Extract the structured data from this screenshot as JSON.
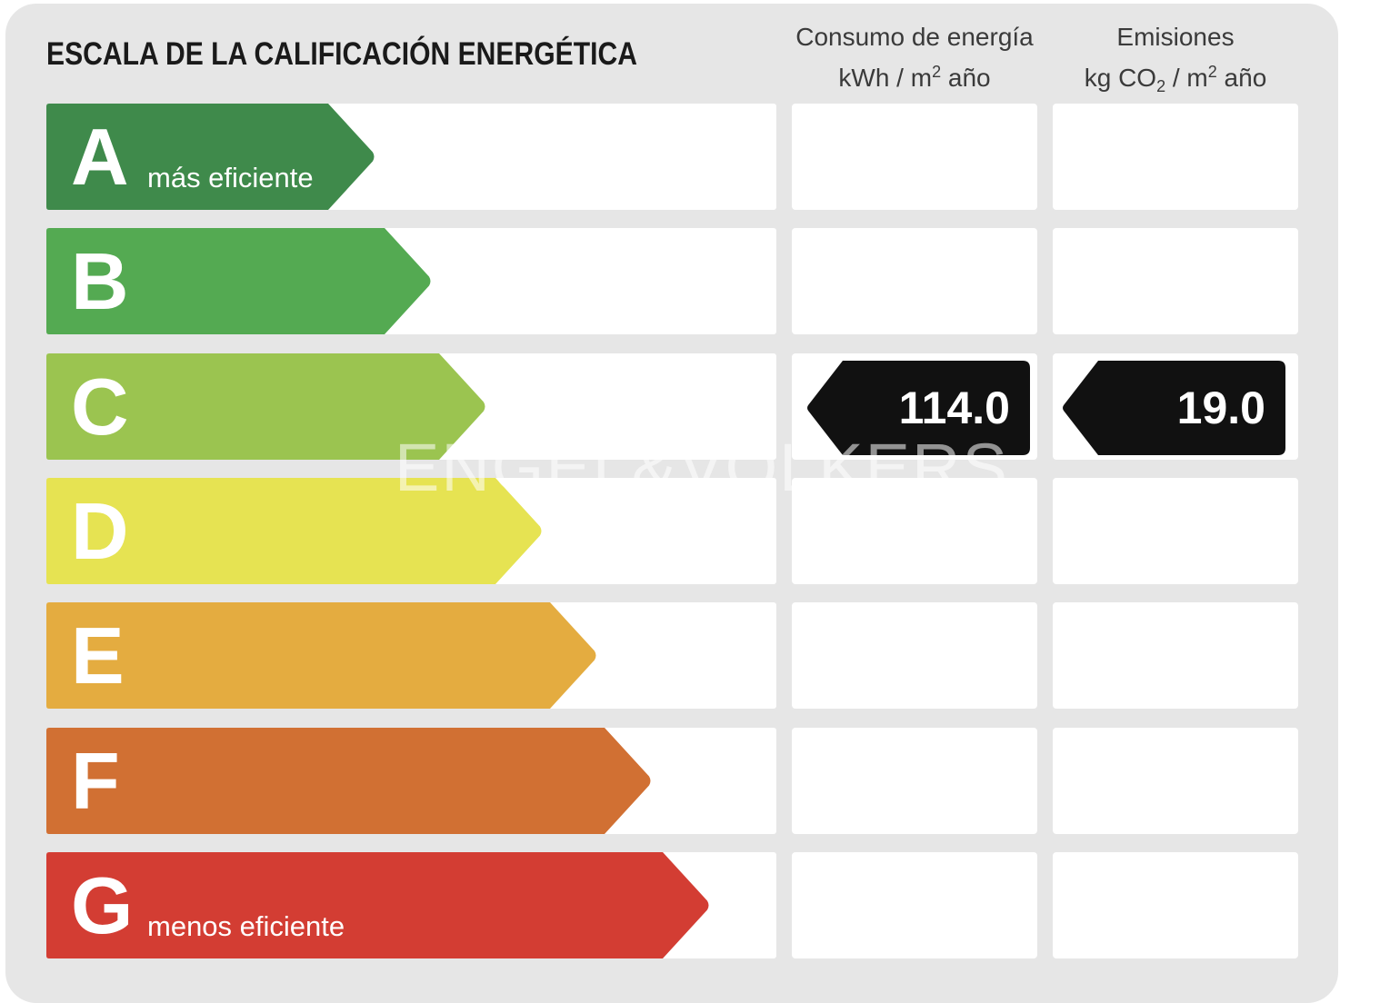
{
  "title": "ESCALA DE LA CALIFICACIÓN ENERGÉTICA",
  "columns": {
    "energy": {
      "line1": "Consumo de energía",
      "unit_pre": "kWh / m",
      "unit_sup": "2",
      "unit_post": " año"
    },
    "emissions": {
      "line1": "Emisiones",
      "unit_pre": "kg CO",
      "unit_sub": "2",
      "unit_mid": " / m",
      "unit_sup": "2",
      "unit_post": " año"
    }
  },
  "ratings": [
    {
      "letter": "A",
      "label": "más eficiente",
      "color": "#3f8a4b"
    },
    {
      "letter": "B",
      "label": "",
      "color": "#54aa52"
    },
    {
      "letter": "C",
      "label": "",
      "color": "#9bc450"
    },
    {
      "letter": "D",
      "label": "",
      "color": "#e6e352"
    },
    {
      "letter": "E",
      "label": "",
      "color": "#e4ac40"
    },
    {
      "letter": "F",
      "label": "",
      "color": "#d17033"
    },
    {
      "letter": "G",
      "label": "menos eficiente",
      "color": "#d33d33"
    }
  ],
  "indicator": {
    "rating": "C",
    "energy_value": "114.0",
    "emissions_value": "19.0",
    "tag_color": "#111111"
  },
  "watermark": "ENGEL&VÖLKERS"
}
